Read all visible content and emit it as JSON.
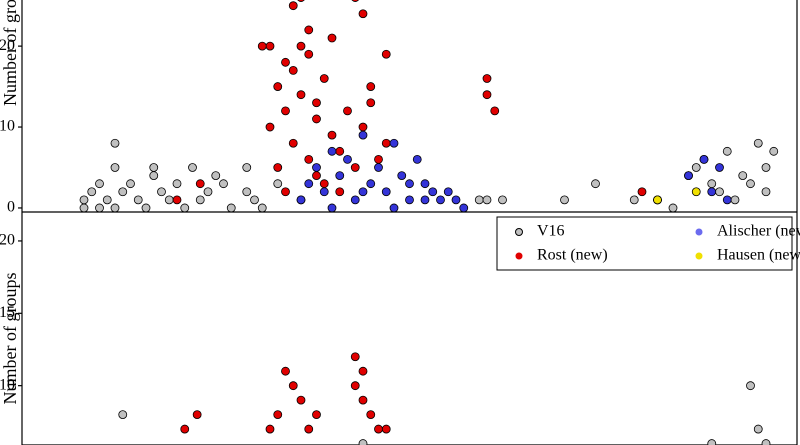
{
  "chart_data": [
    {
      "type": "scatter",
      "ylabel": "Number of groups",
      "xlim": [
        0,
        100
      ],
      "ylim": [
        -0.5,
        25.7
      ],
      "yticks": [
        0,
        10,
        20
      ],
      "series": [
        {
          "name": "V16",
          "color": "#c0c0c0",
          "x": [
            8,
            8,
            9,
            10,
            10,
            11,
            12,
            12,
            12,
            13,
            14,
            15,
            16,
            17,
            17,
            18,
            19,
            20,
            21,
            22,
            23,
            24,
            25,
            26,
            27,
            29,
            29,
            30,
            31,
            33,
            59,
            60,
            62,
            70,
            74,
            79,
            82,
            84,
            86,
            87,
            88,
            89,
            90,
            91,
            92,
            93,
            94,
            95,
            96,
            96,
            97
          ],
          "values": [
            0,
            1,
            2,
            0,
            3,
            1,
            0,
            5,
            8,
            2,
            3,
            1,
            0,
            4,
            5,
            2,
            1,
            3,
            0,
            5,
            1,
            2,
            4,
            3,
            0,
            2,
            5,
            1,
            0,
            3,
            1,
            1,
            1,
            1,
            3,
            1,
            1,
            0,
            4,
            5,
            6,
            3,
            2,
            7,
            1,
            4,
            3,
            8,
            5,
            2,
            7
          ]
        },
        {
          "name": "Rost (new)",
          "color": "#e00000",
          "x": [
            32,
            32,
            33,
            33,
            34,
            34,
            35,
            35,
            35,
            36,
            36,
            37,
            37,
            38,
            38,
            39,
            40,
            41,
            42,
            43,
            43,
            44,
            44,
            45,
            46,
            47,
            38,
            39,
            36,
            60,
            60,
            61,
            80,
            82,
            20,
            23,
            31,
            34,
            36,
            37,
            40,
            41,
            43,
            45,
            47
          ],
          "values": [
            20,
            10,
            15,
            5,
            12,
            2,
            25,
            17,
            8,
            26,
            14,
            22,
            19,
            13,
            4,
            16,
            9,
            7,
            12,
            27,
            5,
            24,
            10,
            15,
            6,
            19,
            11,
            3,
            1,
            16,
            14,
            12,
            2,
            1,
            1,
            3,
            20,
            18,
            20,
            6,
            21,
            2,
            26,
            13,
            8
          ]
        },
        {
          "name": "Alischer (new)",
          "color": "#3434d8",
          "x": [
            36,
            37,
            38,
            39,
            40,
            41,
            42,
            43,
            44,
            45,
            46,
            47,
            48,
            49,
            50,
            51,
            52,
            53,
            54,
            55,
            56,
            57,
            40,
            44,
            48,
            50,
            52,
            86,
            88,
            89,
            90,
            91
          ],
          "values": [
            1,
            3,
            5,
            2,
            7,
            4,
            6,
            1,
            9,
            3,
            5,
            2,
            8,
            4,
            1,
            6,
            3,
            2,
            1,
            2,
            1,
            0,
            0,
            2,
            0,
            3,
            1,
            4,
            6,
            2,
            5,
            1
          ]
        },
        {
          "name": "Hausen (new)",
          "color": "#f0e000",
          "x": [
            82,
            87
          ],
          "values": [
            1,
            2
          ]
        }
      ]
    },
    {
      "type": "scatter",
      "ylabel": "Number of groups",
      "xlim": [
        0,
        100
      ],
      "ylim": [
        5.9,
        22
      ],
      "yticks": [
        10,
        15,
        20
      ],
      "legend": "upper right",
      "series": [
        {
          "name": "V16",
          "color": "#c0c0c0",
          "x": [
            13,
            89,
            94,
            95,
            96,
            44
          ],
          "values": [
            8,
            6,
            10,
            7,
            6,
            6
          ]
        },
        {
          "name": "Rost (new)",
          "color": "#e00000",
          "x": [
            21,
            22.6,
            32,
            33,
            34,
            35,
            36,
            37,
            38,
            43,
            43,
            44,
            44,
            45,
            46,
            47
          ],
          "values": [
            7,
            8,
            7,
            8,
            11,
            10,
            9,
            7,
            8,
            12,
            10,
            11,
            9,
            8,
            7,
            7
          ]
        },
        {
          "name": "Alischer (new)",
          "color": "#6b6bef",
          "x": [],
          "values": []
        },
        {
          "name": "Hausen (new)",
          "color": "#f0e000",
          "x": [],
          "values": []
        }
      ]
    }
  ]
}
